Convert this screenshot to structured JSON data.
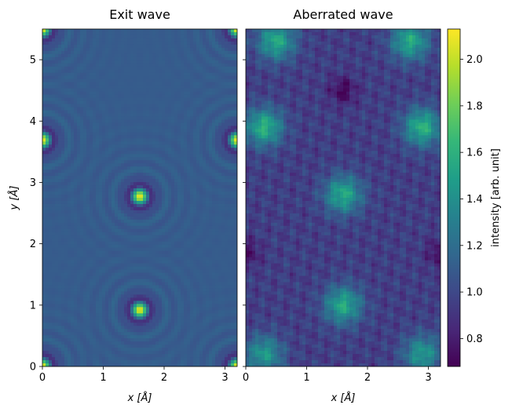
{
  "chart_data": [
    {
      "type": "heatmap",
      "title": "Exit wave",
      "xlabel": "x [Å]",
      "ylabel": "y [Å]",
      "xlim": [
        0,
        3.2
      ],
      "ylim": [
        0,
        5.5
      ],
      "xticks": [
        "0",
        "1",
        "2",
        "3"
      ],
      "yticks": [
        "0",
        "1",
        "2",
        "3",
        "4",
        "5"
      ],
      "peaks": [
        {
          "x": 0.0,
          "y": 0.0,
          "intensity": 2.1
        },
        {
          "x": 3.2,
          "y": 0.0,
          "intensity": 2.1
        },
        {
          "x": 1.6,
          "y": 0.92,
          "intensity": 2.1
        },
        {
          "x": 1.6,
          "y": 2.77,
          "intensity": 2.1
        },
        {
          "x": 0.0,
          "y": 3.69,
          "intensity": 2.1
        },
        {
          "x": 3.2,
          "y": 3.69,
          "intensity": 2.1
        },
        {
          "x": 0.0,
          "y": 5.5,
          "intensity": 2.1
        },
        {
          "x": 3.2,
          "y": 5.5,
          "intensity": 2.1
        }
      ],
      "background_intensity": 1.1
    },
    {
      "type": "heatmap",
      "title": "Aberrated wave",
      "xlabel": "x [Å]",
      "xlim": [
        0,
        3.2
      ],
      "ylim": [
        0,
        5.5
      ],
      "xticks": [
        "0",
        "1",
        "2",
        "3"
      ],
      "bright_regions": [
        {
          "x": 1.6,
          "y": 2.8,
          "intensity": 1.55
        },
        {
          "x": 1.6,
          "y": 1.0,
          "intensity": 1.55
        },
        {
          "x": 0.3,
          "y": 3.9,
          "intensity": 1.6
        },
        {
          "x": 2.9,
          "y": 3.9,
          "intensity": 1.6
        },
        {
          "x": 0.3,
          "y": 0.2,
          "intensity": 1.45
        },
        {
          "x": 2.9,
          "y": 0.2,
          "intensity": 1.45
        },
        {
          "x": 0.5,
          "y": 5.3,
          "intensity": 1.55
        },
        {
          "x": 2.7,
          "y": 5.3,
          "intensity": 1.55
        }
      ],
      "dark_regions": [
        {
          "x": 1.6,
          "y": 4.5,
          "intensity": 0.7
        },
        {
          "x": 0.0,
          "y": 1.85,
          "intensity": 0.72
        },
        {
          "x": 3.2,
          "y": 1.85,
          "intensity": 0.72
        }
      ]
    }
  ],
  "colorbar": {
    "label": "intensity [arb. unit]",
    "range": [
      0.68,
      2.13
    ],
    "ticks": [
      "0.8",
      "1.0",
      "1.2",
      "1.4",
      "1.6",
      "1.8",
      "2.0"
    ],
    "colormap": "viridis"
  },
  "colors": {
    "viridis_low": "#440154",
    "viridis_mid": "#21918c",
    "viridis_high": "#fde725"
  }
}
